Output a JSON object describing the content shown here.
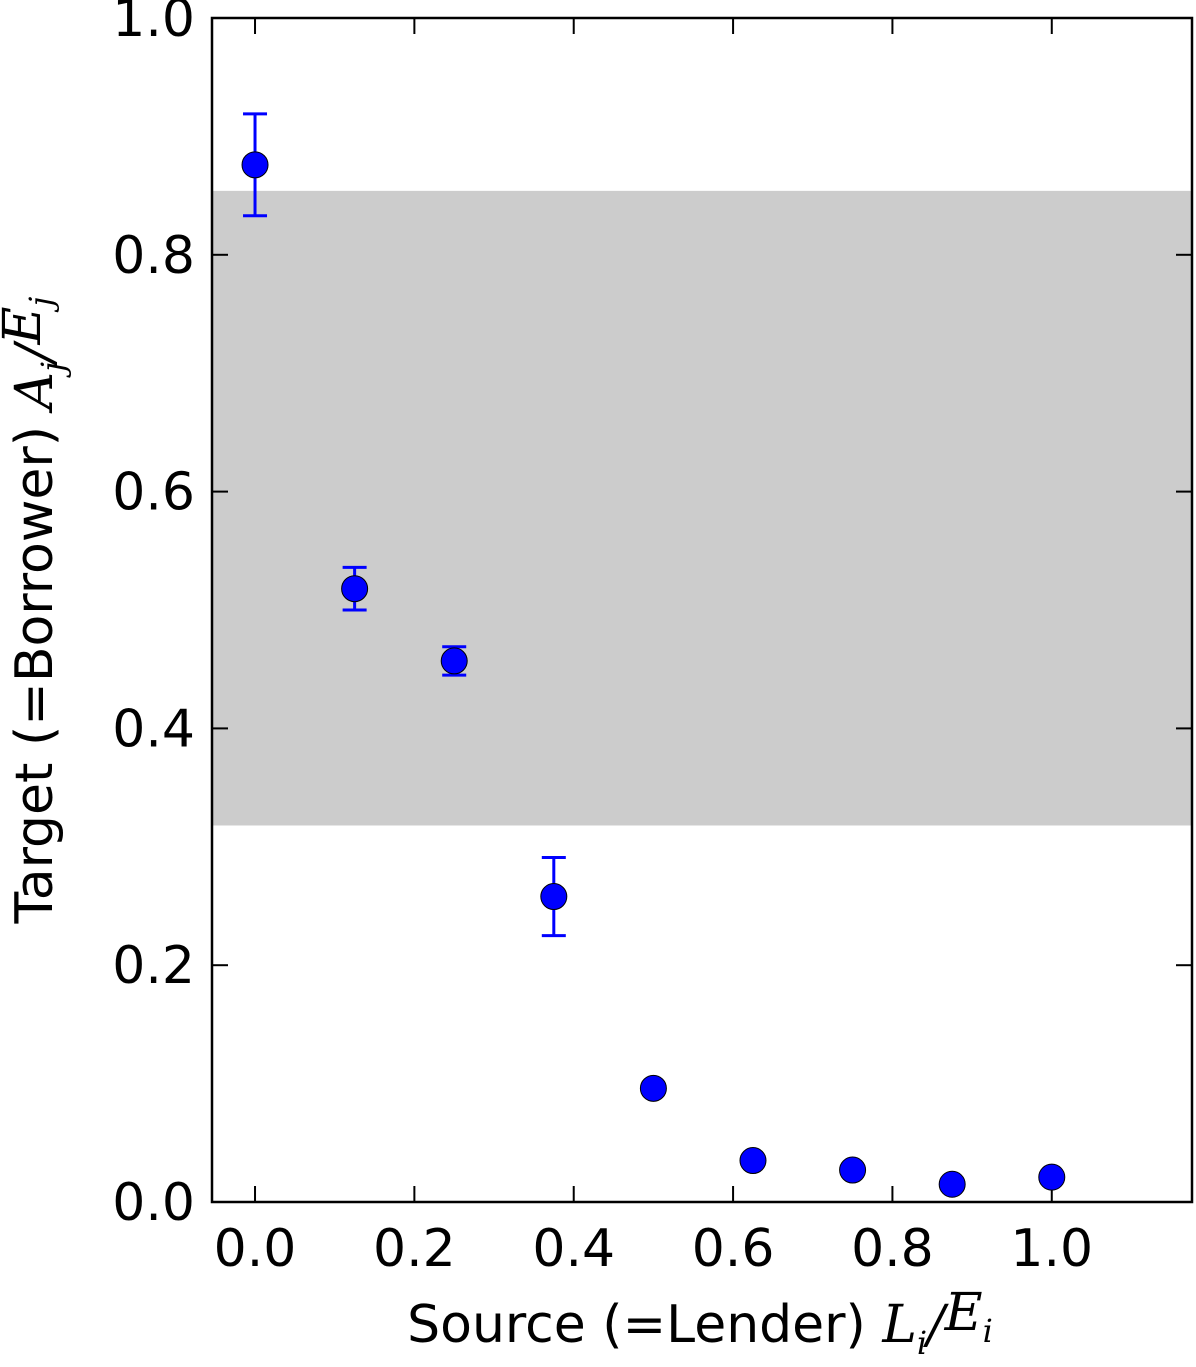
{
  "chart_data": {
    "type": "errorbar",
    "xlabel": {
      "text": "Source (=Lender)",
      "math": [
        "L",
        "i",
        "/",
        "E",
        "i"
      ]
    },
    "ylabel": {
      "text": "Target (=Borrower)",
      "math": [
        "A",
        "j",
        "/",
        "E",
        "j"
      ]
    },
    "x": [
      0,
      0.125,
      0.25,
      0.375,
      0.5,
      0.625,
      0.75,
      0.875,
      1.0
    ],
    "y": [
      0.876,
      0.518,
      0.457,
      0.258,
      0.096,
      0.035,
      0.027,
      0.015,
      0.021
    ],
    "errors": [
      0.043,
      0.018,
      0.012,
      0.033,
      0,
      0,
      0,
      0,
      0
    ],
    "color": "#0000ff",
    "band": [
      0.318,
      0.854
    ],
    "band_color": "#cccccc",
    "xlim": [
      -0.054,
      1.176
    ],
    "ylim": [
      0,
      1
    ],
    "xticks": [
      {
        "value": 0,
        "label": "0.0"
      },
      0.2,
      0.4,
      0.6,
      0.8,
      {
        "value": 1,
        "label": "1.0"
      }
    ],
    "yticks": [
      {
        "value": 0,
        "label": "0.0"
      },
      0.2,
      0.4,
      0.6,
      0.8,
      {
        "value": 1,
        "label": "1.0"
      }
    ]
  }
}
